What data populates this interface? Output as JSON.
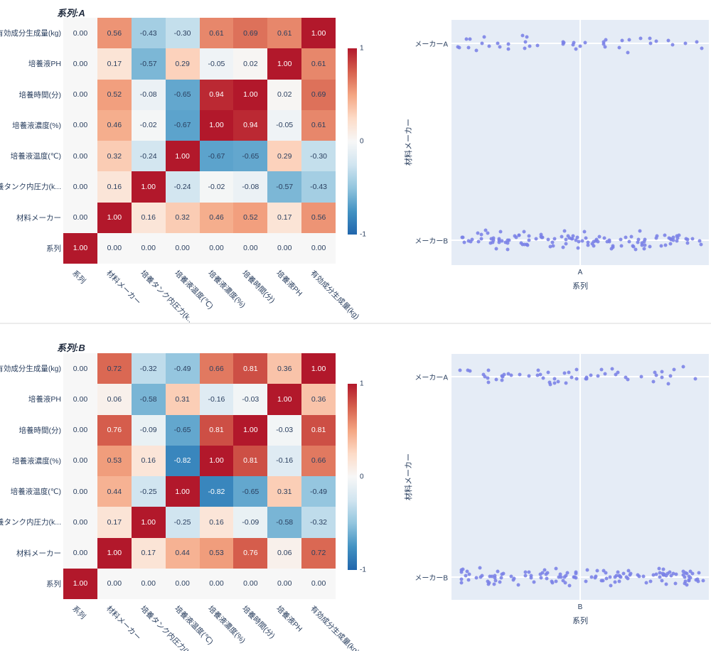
{
  "colors": {
    "plot_background": "#e5ecf6",
    "grid": "#ffffff",
    "text": "#2a3f5f",
    "marker": "#7a81e6",
    "heatmap_text_dark": "#2a3f5f",
    "heatmap_text_light": "#ffffff",
    "rdbu_r_stops": [
      "#2166ac",
      "#4393c3",
      "#92c5de",
      "#d1e5f0",
      "#f7f7f7",
      "#fddbc7",
      "#f4a582",
      "#d6604d",
      "#b2182b"
    ]
  },
  "chart_data": [
    {
      "type": "heatmap",
      "title": "系列:A",
      "rows": [
        "有効成分生成量(kg)",
        "培養液PH",
        "培養時間(分)",
        "培養液濃度(%)",
        "培養液温度(℃)",
        "培養タンク内圧力(k...",
        "材料メーカー",
        "系列"
      ],
      "cols": [
        "系列",
        "材料メーカー",
        "培養タンク内圧力(k...",
        "培養液温度(℃)",
        "培養液濃度(%)",
        "培養時間(分)",
        "培養液PH",
        "有効成分生成量(kg)"
      ],
      "z": [
        [
          0.0,
          0.56,
          -0.43,
          -0.3,
          0.61,
          0.69,
          0.61,
          1.0
        ],
        [
          0.0,
          0.17,
          -0.57,
          0.29,
          -0.05,
          0.02,
          1.0,
          0.61
        ],
        [
          0.0,
          0.52,
          -0.08,
          -0.65,
          0.94,
          1.0,
          0.02,
          0.69
        ],
        [
          0.0,
          0.46,
          -0.02,
          -0.67,
          1.0,
          0.94,
          -0.05,
          0.61
        ],
        [
          0.0,
          0.32,
          -0.24,
          1.0,
          -0.67,
          -0.65,
          0.29,
          -0.3
        ],
        [
          0.0,
          0.16,
          1.0,
          -0.24,
          -0.02,
          -0.08,
          -0.57,
          -0.43
        ],
        [
          0.0,
          1.0,
          0.16,
          0.32,
          0.46,
          0.52,
          0.17,
          0.56
        ],
        [
          1.0,
          0.0,
          0.0,
          0.0,
          0.0,
          0.0,
          0.0,
          0.0
        ]
      ],
      "zmin": -1,
      "zmax": 1,
      "colorscale": "RdBu_r",
      "colorbar_ticks": [
        "1",
        "0",
        "-1"
      ]
    },
    {
      "type": "strip",
      "x_categories": [
        "A"
      ],
      "y_categories": [
        "メーカーA",
        "メーカーB"
      ],
      "series": [
        {
          "name": "メーカーA",
          "count": 44
        },
        {
          "name": "メーカーB",
          "count": 122
        }
      ],
      "xlabel": "系列",
      "ylabel": "材料メーカー",
      "seed": 42
    },
    {
      "type": "heatmap",
      "title": "系列:B",
      "rows": [
        "有効成分生成量(kg)",
        "培養液PH",
        "培養時間(分)",
        "培養液濃度(%)",
        "培養液温度(℃)",
        "培養タンク内圧力(k...",
        "材料メーカー",
        "系列"
      ],
      "cols": [
        "系列",
        "材料メーカー",
        "培養タンク内圧力(k...",
        "培養液温度(℃)",
        "培養液濃度(%)",
        "培養時間(分)",
        "培養液PH",
        "有効成分生成量(kg)"
      ],
      "z": [
        [
          0.0,
          0.72,
          -0.32,
          -0.49,
          0.66,
          0.81,
          0.36,
          1.0
        ],
        [
          0.0,
          0.06,
          -0.58,
          0.31,
          -0.16,
          -0.03,
          1.0,
          0.36
        ],
        [
          0.0,
          0.76,
          -0.09,
          -0.65,
          0.81,
          1.0,
          -0.03,
          0.81
        ],
        [
          0.0,
          0.53,
          0.16,
          -0.82,
          1.0,
          0.81,
          -0.16,
          0.66
        ],
        [
          0.0,
          0.44,
          -0.25,
          1.0,
          -0.82,
          -0.65,
          0.31,
          -0.49
        ],
        [
          0.0,
          0.17,
          1.0,
          -0.25,
          0.16,
          -0.09,
          -0.58,
          -0.32
        ],
        [
          0.0,
          1.0,
          0.17,
          0.44,
          0.53,
          0.76,
          0.06,
          0.72
        ],
        [
          1.0,
          0.0,
          0.0,
          0.0,
          0.0,
          0.0,
          0.0,
          0.0
        ]
      ],
      "zmin": -1,
      "zmax": 1,
      "colorscale": "RdBu_r",
      "colorbar_ticks": [
        "1",
        "0",
        "-1"
      ]
    },
    {
      "type": "strip",
      "x_categories": [
        "B"
      ],
      "y_categories": [
        "メーカーA",
        "メーカーB"
      ],
      "series": [
        {
          "name": "メーカーA",
          "count": 56
        },
        {
          "name": "メーカーB",
          "count": 132
        }
      ],
      "xlabel": "系列",
      "ylabel": "材料メーカー",
      "seed": 1337
    }
  ]
}
